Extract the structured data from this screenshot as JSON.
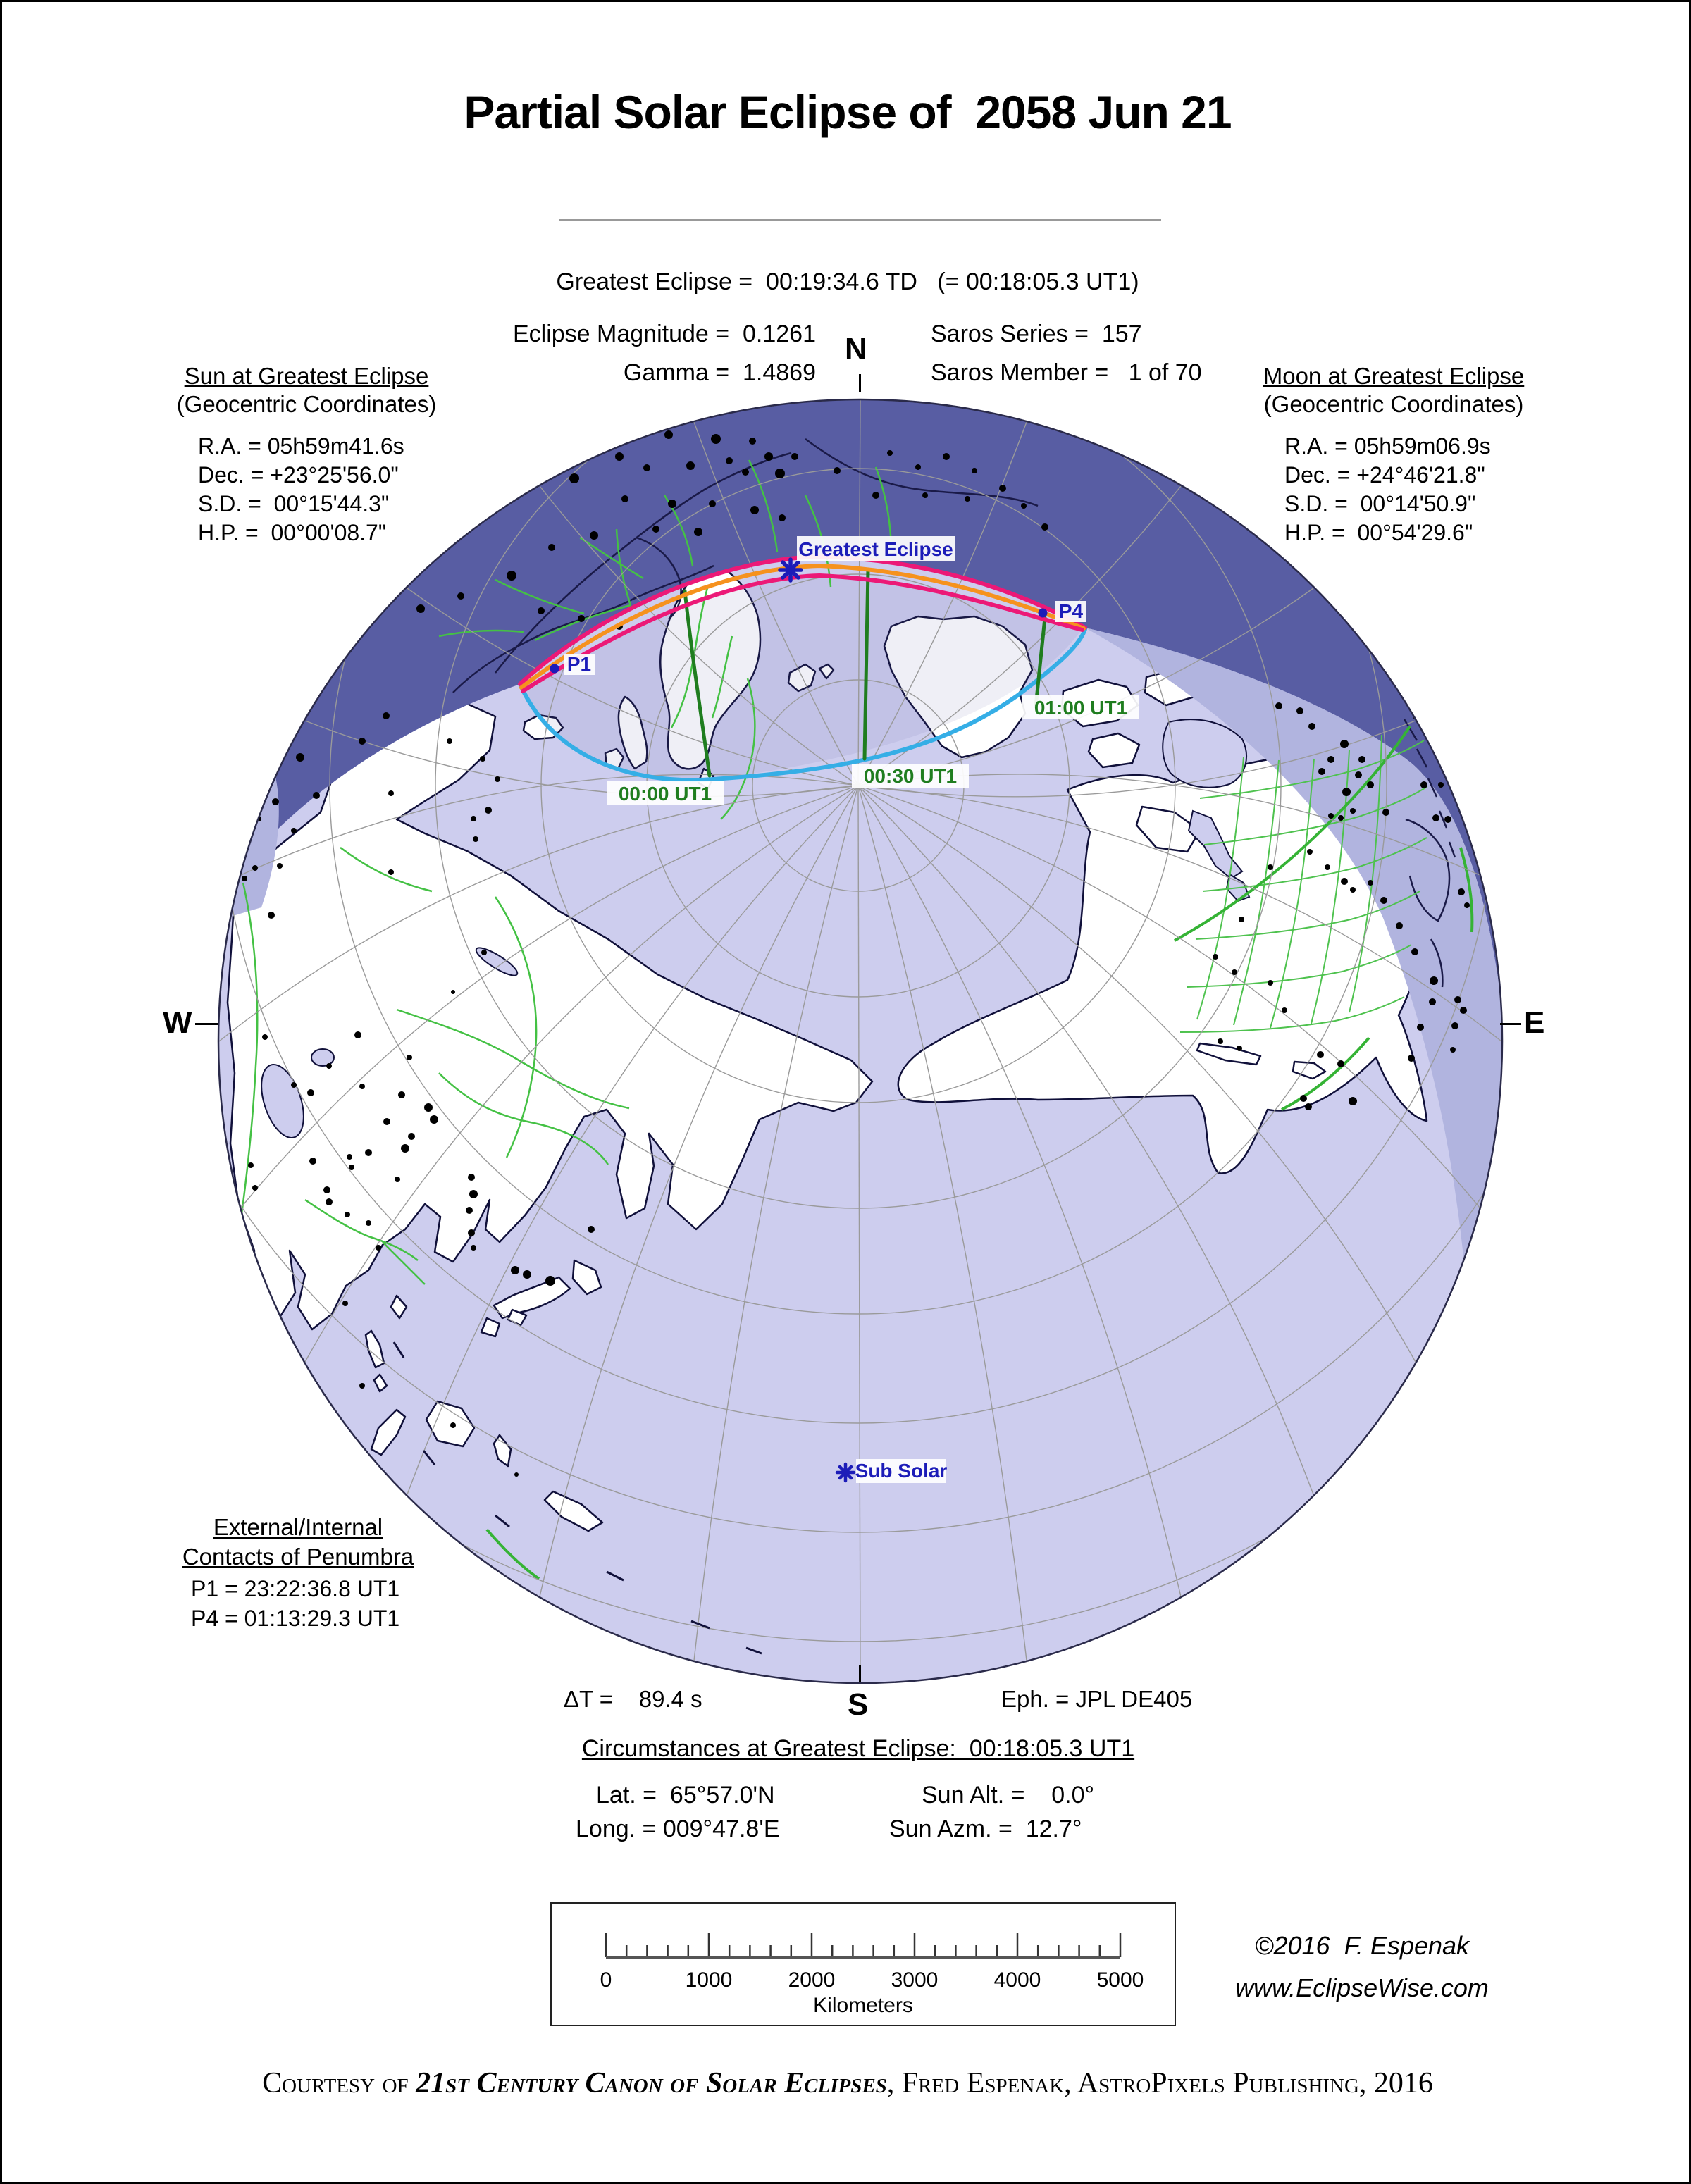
{
  "title": "Partial Solar Eclipse of  2058 Jun 21",
  "header": {
    "greatest": "Greatest Eclipse =  00:19:34.6 TD   (= 00:18:05.3 UT1)",
    "magnitude": "Eclipse Magnitude =  0.1261",
    "gamma": "Gamma =  1.4869",
    "saros_series": "Saros Series =  157",
    "saros_member": "Saros Member =   1 of 70"
  },
  "sun_block": {
    "title": "Sun at Greatest Eclipse",
    "subtitle": "(Geocentric Coordinates)",
    "ra": "R.A. = 05h59m41.6s",
    "dec": "Dec. = +23°25'56.0\"",
    "sd": "S.D. =  00°15'44.3\"",
    "hp": "H.P. =  00°00'08.7\""
  },
  "moon_block": {
    "title": "Moon at Greatest Eclipse",
    "subtitle": "(Geocentric Coordinates)",
    "ra": "R.A. = 05h59m06.9s",
    "dec": "Dec. = +24°46'21.8\"",
    "sd": "S.D. =  00°14'50.9\"",
    "hp": "H.P. =  00°54'29.6\""
  },
  "map_labels": {
    "greatest_eclipse": "Greatest Eclipse",
    "p1": "P1",
    "p4": "P4",
    "t0000": "00:00 UT1",
    "t0030": "00:30 UT1",
    "t0100": "01:00 UT1",
    "sub_solar": "Sub Solar",
    "north": "N",
    "south": "S",
    "east": "E",
    "west": "W"
  },
  "contacts": {
    "title1": "External/Internal",
    "title2": "Contacts of Penumbra",
    "p1": "P1 = 23:22:36.8 UT1",
    "p4": "P4 = 01:13:29.3 UT1"
  },
  "footer_info": {
    "delta_t": "ΔT =    89.4 s",
    "ephemeris": "Eph. = JPL DE405"
  },
  "circumstances": {
    "title": "Circumstances at Greatest Eclipse:  00:18:05.3 UT1",
    "lat": "Lat. =  65°57.0'N",
    "long": "Long. = 009°47.8'E",
    "sun_alt": "Sun Alt. =    0.0°",
    "sun_azm": "Sun Azm. =  12.7°"
  },
  "scale_bar": {
    "ticks": [
      "0",
      "1000",
      "2000",
      "3000",
      "4000",
      "5000"
    ],
    "unit": "Kilometers"
  },
  "credit": {
    "line1": "©2016  F. Espenak",
    "line2": "www.EclipseWise.com"
  },
  "courtesy": {
    "prefix": "Courtesy of ",
    "book": "21st Century Canon of Solar Eclipses",
    "suffix": ", Fred Espenak, AstroPixels Publishing, 2016"
  },
  "colors": {
    "night": "#585da3",
    "dusk": "#b1b4df",
    "ocean": "#cdcdee",
    "land": "#ffffff",
    "penumbra_limit": "#ec1977",
    "center_line": "#f6921e",
    "rise_set_curve": "#35aee6",
    "time_line": "#1f7d1f",
    "label_blue": "#1c1cb8",
    "border_green": "#44c144"
  }
}
